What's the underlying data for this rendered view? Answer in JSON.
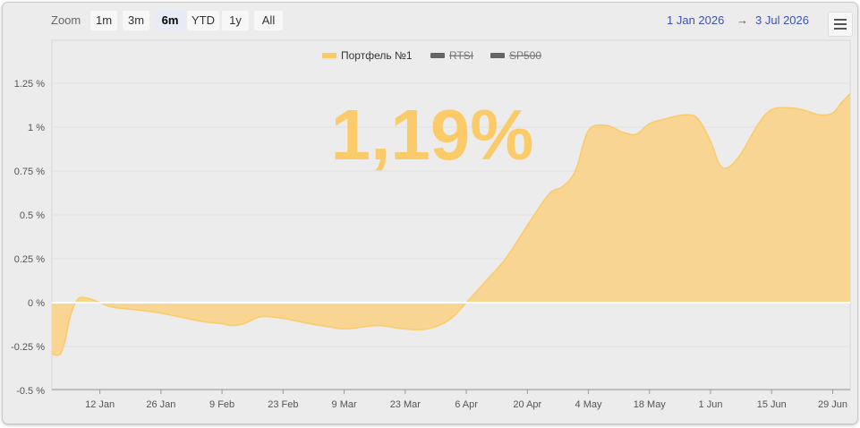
{
  "toolbar": {
    "zoom_label": "Zoom",
    "buttons": [
      "1m",
      "3m",
      "6m",
      "YTD",
      "1y",
      "All"
    ],
    "active": "6m",
    "range_from": "1 Jan 2026",
    "range_arrow": "→",
    "range_to": "3 Jul 2026"
  },
  "menu_icon": "hamburger-menu-icon",
  "colors": {
    "series": "#fbcb69",
    "area": "#f9d594",
    "zero_line": "#ffffff",
    "background": "#ececec"
  },
  "chart_data": {
    "type": "area",
    "title": "1,19%",
    "legend": [
      {
        "name": "Портфель №1",
        "visible": true
      },
      {
        "name": "RTSI",
        "visible": false
      },
      {
        "name": "SP500",
        "visible": false
      }
    ],
    "legend_position": "top-center",
    "y_ticks": [
      "1.25 %",
      "1 %",
      "0.75 %",
      "0.5 %",
      "0.25 %",
      "0 %",
      "-0.25 %",
      "-0.5 %"
    ],
    "y_values": [
      1.25,
      1,
      0.75,
      0.5,
      0.25,
      0,
      -0.25,
      -0.5
    ],
    "ylim": [
      -0.5,
      1.25
    ],
    "x_ticks": [
      "12 Jan",
      "26 Jan",
      "9 Feb",
      "23 Feb",
      "9 Mar",
      "23 Mar",
      "6 Apr",
      "20 Apr",
      "4 May",
      "18 May",
      "1 Jun",
      "15 Jun",
      "29 Jun"
    ],
    "xlim": [
      "2026-01-01",
      "2026-07-03"
    ],
    "grid": true,
    "series": [
      {
        "name": "Портфель №1",
        "x": [
          "2026-01-01",
          "2026-01-02",
          "2026-01-03",
          "2026-01-04",
          "2026-01-05",
          "2026-01-06",
          "2026-01-07",
          "2026-01-08",
          "2026-01-10",
          "2026-01-12",
          "2026-01-14",
          "2026-01-16",
          "2026-01-20",
          "2026-01-26",
          "2026-02-01",
          "2026-02-05",
          "2026-02-09",
          "2026-02-11",
          "2026-02-14",
          "2026-02-18",
          "2026-02-23",
          "2026-03-01",
          "2026-03-06",
          "2026-03-09",
          "2026-03-13",
          "2026-03-17",
          "2026-03-23",
          "2026-03-28",
          "2026-04-02",
          "2026-04-06",
          "2026-04-10",
          "2026-04-15",
          "2026-04-20",
          "2026-04-25",
          "2026-04-28",
          "2026-05-01",
          "2026-05-04",
          "2026-05-08",
          "2026-05-12",
          "2026-05-15",
          "2026-05-18",
          "2026-05-22",
          "2026-05-26",
          "2026-05-29",
          "2026-06-01",
          "2026-06-03",
          "2026-06-05",
          "2026-06-08",
          "2026-06-12",
          "2026-06-15",
          "2026-06-19",
          "2026-06-22",
          "2026-06-26",
          "2026-06-29",
          "2026-07-01",
          "2026-07-03"
        ],
        "y": [
          -0.29,
          -0.3,
          -0.29,
          -0.22,
          -0.1,
          -0.02,
          0.02,
          0.03,
          0.02,
          0.0,
          -0.02,
          -0.03,
          -0.04,
          -0.06,
          -0.09,
          -0.11,
          -0.12,
          -0.13,
          -0.12,
          -0.08,
          -0.09,
          -0.12,
          -0.14,
          -0.15,
          -0.14,
          -0.13,
          -0.15,
          -0.15,
          -0.1,
          0.0,
          0.11,
          0.25,
          0.44,
          0.62,
          0.66,
          0.75,
          0.98,
          1.01,
          0.97,
          0.96,
          1.02,
          1.05,
          1.07,
          1.05,
          0.92,
          0.79,
          0.77,
          0.85,
          1.02,
          1.1,
          1.11,
          1.1,
          1.07,
          1.08,
          1.14,
          1.19
        ]
      }
    ]
  }
}
